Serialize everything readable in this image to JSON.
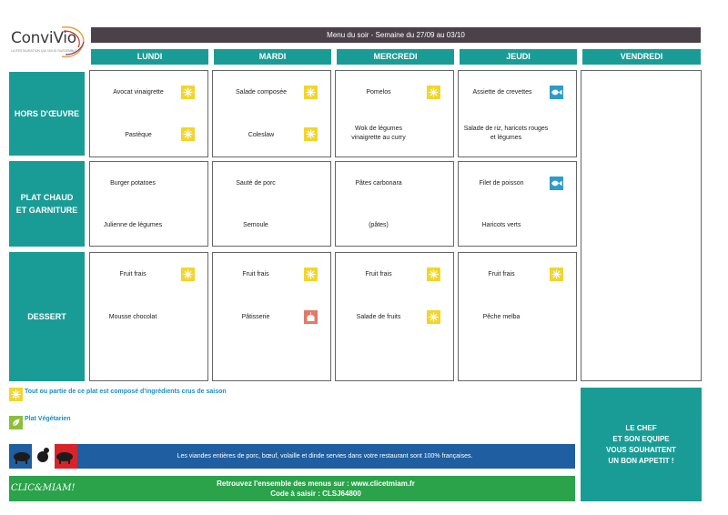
{
  "logo": {
    "name": "ConviVio",
    "tagline": "LA RESTAURATION QUI NOUS RASSEMBLE"
  },
  "title": "Menu du soir - Semaine du 27/09 au 03/10",
  "days": [
    "LUNDI",
    "MARDI",
    "MERCREDI",
    "JEUDI",
    "VENDREDI"
  ],
  "rows": [
    {
      "label": "HORS D'ŒUVRE"
    },
    {
      "label": "PLAT CHAUD ET GARNITURE"
    },
    {
      "label": "DESSERT"
    }
  ],
  "menu": {
    "hors_doeuvre": {
      "lundi": [
        "Avocat vinaigrette",
        "Pastèque"
      ],
      "mardi": [
        "Salade composée",
        "Coleslaw"
      ],
      "mercredi": [
        "Pomelos",
        "Wok de légumes vinaigrette au curry"
      ],
      "jeudi": [
        "Assiette de crevettes",
        "Salade de riz, haricots rouges et légumes"
      ]
    },
    "plat": {
      "lundi": [
        "Burger potatoes",
        "Julienne de légumes"
      ],
      "mardi": [
        "Sauté de porc",
        "Semoule"
      ],
      "mercredi": [
        "Pâtes carbonara",
        "(pâtes)"
      ],
      "jeudi": [
        "Filet de poisson",
        "Haricots verts"
      ]
    },
    "dessert": {
      "lundi": [
        "Fruit frais",
        "Mousse chocolat"
      ],
      "mardi": [
        "Fruit frais",
        "Pâtisserie"
      ],
      "mercredi": [
        "Fruit frais",
        "Salade de fruits"
      ],
      "jeudi": [
        "Fruit frais",
        "Pêche melba"
      ]
    }
  },
  "icons": {
    "sun": "sun-icon",
    "fish": "fish-icon",
    "cake": "cake-icon",
    "leaf": "leaf-icon",
    "sun_color": "#f3d52a",
    "fish_color": "#2d9cc8",
    "cake_color": "#e27a6a",
    "leaf_color": "#8bbf3a"
  },
  "legend": {
    "seasonal": "Tout ou partie de ce plat est composé d'ingrédients crus de saison",
    "vegetarian": "Plat Végétarien"
  },
  "meat_notice": "Les viandes entières de porc, bœuf, volaille et dinde servies dans votre restaurant sont 100% françaises.",
  "site": {
    "logo": "CLIC&MIAM!",
    "line1": "Retrouvez l'ensemble des menus sur : www.clicetmiam.fr",
    "line2": "Code à saisir : CLSJ64800"
  },
  "chef": [
    "LE CHEF",
    "ET SON EQUIPE",
    "VOUS SOUHAITENT",
    "UN BON APPETIT !"
  ],
  "colors": {
    "teal": "#1a9c96",
    "title_bar": "#4a4248",
    "meat_bar": "#1f5ea0",
    "site_bar": "#2aa34a"
  }
}
